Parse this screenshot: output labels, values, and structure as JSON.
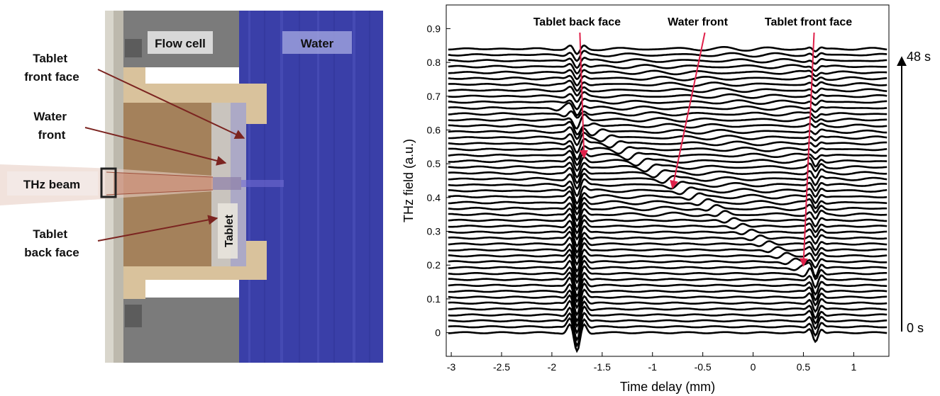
{
  "schematic": {
    "labels": {
      "flow_cell": "Flow cell",
      "water": "Water",
      "tablet": "Tablet",
      "thz_beam": "THz beam",
      "tablet_front_face": [
        "Tablet",
        "front face"
      ],
      "water_front": [
        "Water",
        "front"
      ],
      "tablet_back_face": [
        "Tablet",
        "back face"
      ]
    },
    "colors": {
      "water": "#3a3fa8",
      "flow_cell": "#7b7b7b",
      "holder": "#d9c29c",
      "tablet": "#c9c4be",
      "arrow": "#7b2420",
      "beam": "#c8826a"
    }
  },
  "chart_data": {
    "type": "line",
    "xlabel": "Time delay (mm)",
    "ylabel": "THz field (a.u.)",
    "xlim": [
      -3.05,
      1.35
    ],
    "ylim": [
      -0.07,
      0.97
    ],
    "x_ticks": [
      -3,
      -2.5,
      -2,
      -1.5,
      -1,
      -0.5,
      0,
      0.5,
      1
    ],
    "x_tick_labels": [
      "-3",
      "-2.5",
      "-2",
      "-1.5",
      "-1",
      "-0.5",
      "0",
      "0.5",
      "1"
    ],
    "y_ticks": [
      0,
      0.1,
      0.2,
      0.3,
      0.4,
      0.5,
      0.6,
      0.7,
      0.8,
      0.9
    ],
    "y_tick_labels": [
      "0",
      "0.1",
      "0.2",
      "0.3",
      "0.4",
      "0.5",
      "0.6",
      "0.7",
      "0.8",
      "0.9"
    ],
    "grid": false,
    "trace_count": 49,
    "trace_offset_step": 0.0175,
    "time_range_s": [
      0,
      48
    ],
    "time_label_start": "0 s",
    "time_label_end": "48 s",
    "features": {
      "tablet_back_face": {
        "x_start": -1.75,
        "x_end": -1.75
      },
      "water_front": {
        "x_start": -1.9,
        "x_end": 0.55,
        "trace_start": 10,
        "trace_end": 38
      },
      "tablet_front_face": {
        "x_start": 0.62,
        "x_end": 0.62
      }
    },
    "annotations": [
      {
        "text": "Tablet back face",
        "x": -1.68,
        "y": 0.52
      },
      {
        "text": "Water front",
        "x": -0.8,
        "y": 0.43
      },
      {
        "text": "Tablet front face",
        "x": 0.5,
        "y": 0.2
      }
    ],
    "annotation_color": "#e0204a"
  }
}
